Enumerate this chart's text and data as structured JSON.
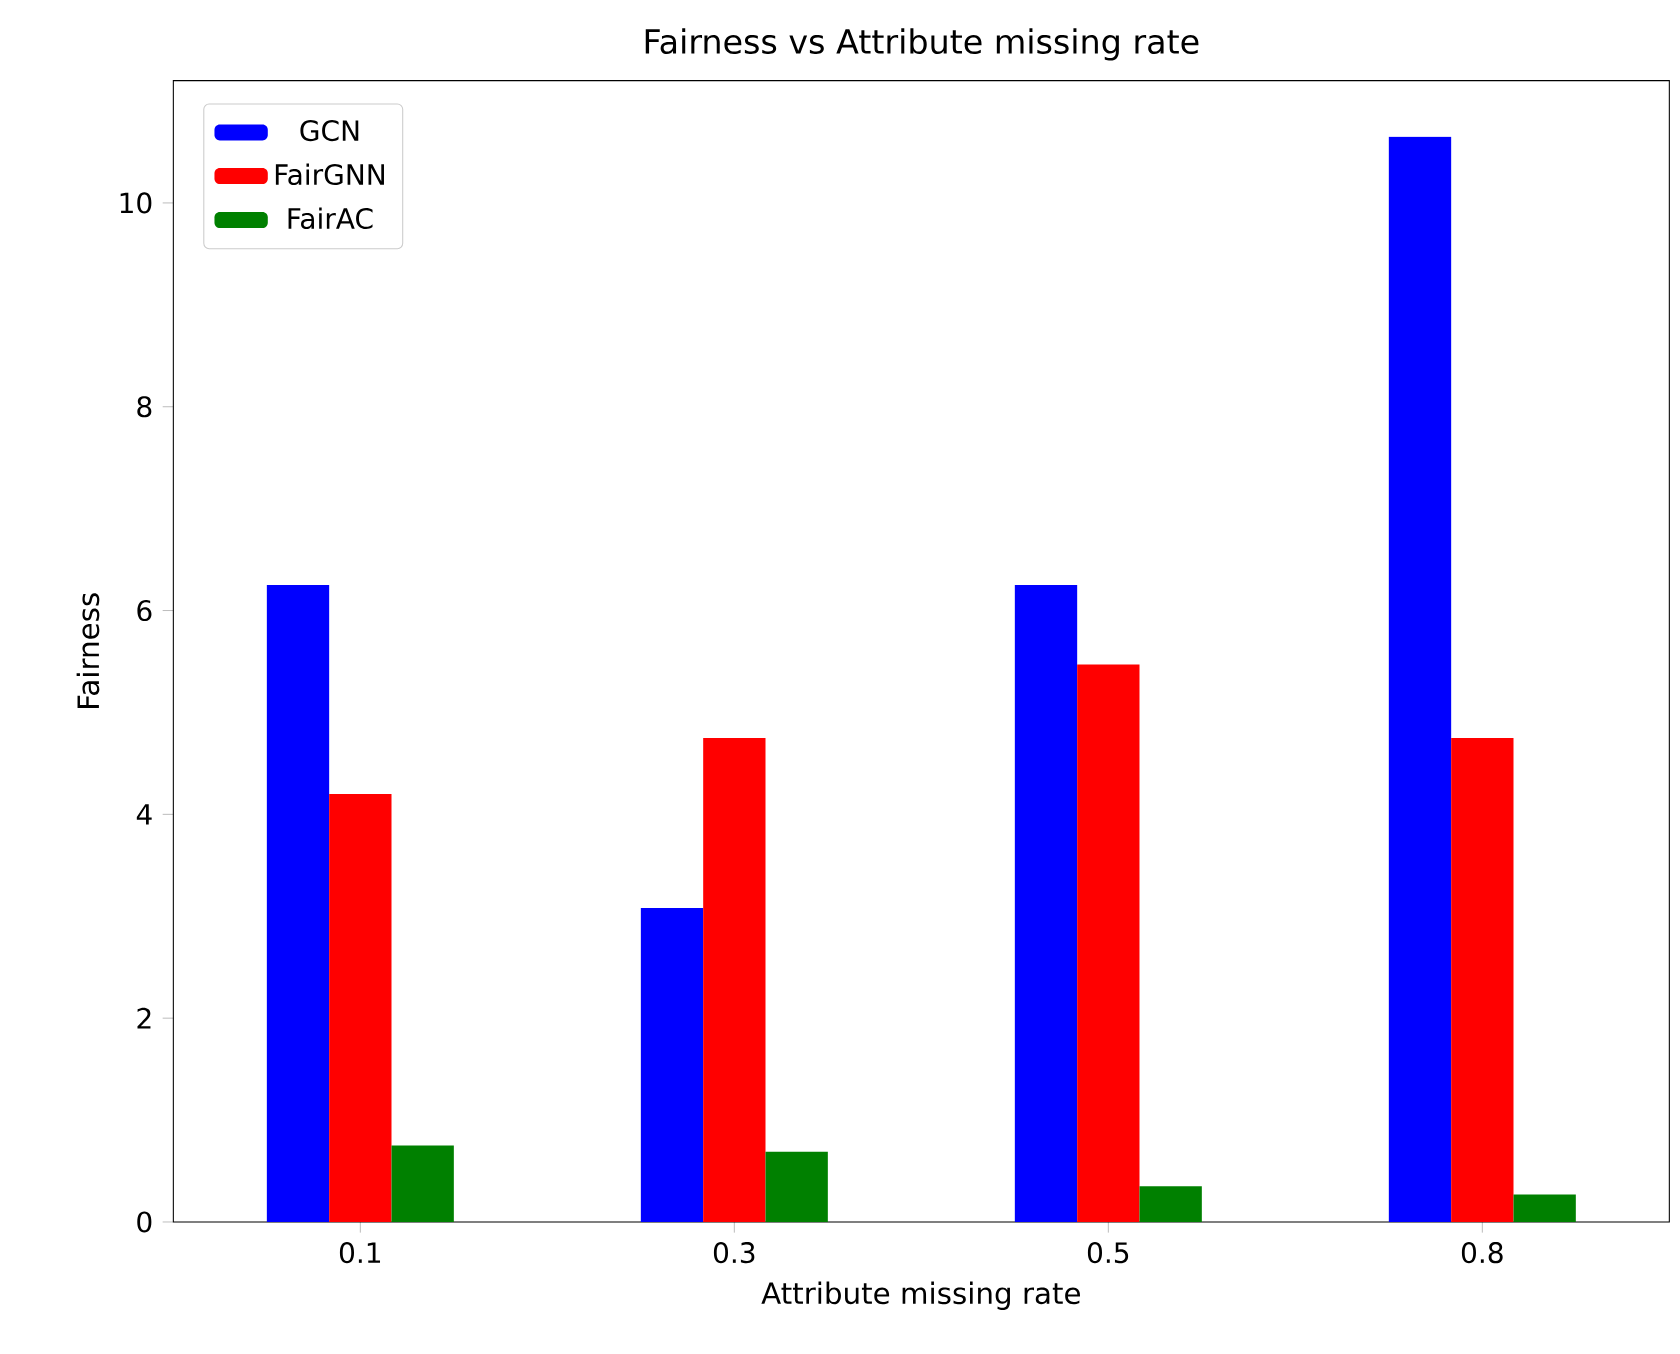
{
  "chart_data": {
    "type": "bar",
    "title": "Fairness vs Attribute missing rate",
    "xlabel": "Attribute missing rate",
    "ylabel": "Fairness",
    "categories": [
      "0.1",
      "0.3",
      "0.5",
      "0.8"
    ],
    "series": [
      {
        "name": "GCN",
        "color": "#0000ff",
        "values": [
          6.25,
          3.08,
          6.25,
          10.65
        ]
      },
      {
        "name": "FairGNN",
        "color": "#ff0000",
        "values": [
          4.2,
          4.75,
          5.47,
          4.75
        ]
      },
      {
        "name": "FairAC",
        "color": "#008000",
        "values": [
          0.75,
          0.69,
          0.35,
          0.27
        ]
      }
    ],
    "ylim": [
      0,
      11.2
    ],
    "yticks": [
      0,
      2,
      4,
      6,
      8,
      10
    ],
    "legend": "top left"
  }
}
